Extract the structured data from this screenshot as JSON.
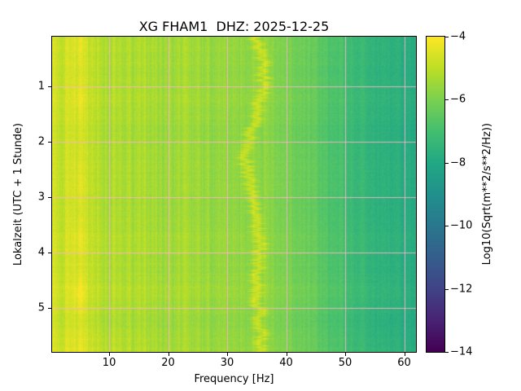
{
  "chart_data": {
    "type": "heatmap",
    "title": "XG FHAM1  DHZ: 2025-12-25",
    "xlabel": "Frequency [Hz]",
    "ylabel": "Lokalzeit (UTC + 1 Stunde)",
    "colorbar_label": "Log10(Sqrt(m**2/s**2/Hz))",
    "x_range": [
      0.33,
      62
    ],
    "y_range": [
      0.1,
      5.8
    ],
    "x_ticks": [
      10,
      20,
      30,
      40,
      50,
      60
    ],
    "y_ticks": [
      1,
      2,
      3,
      4,
      5
    ],
    "color_range": [
      -14,
      -4
    ],
    "colorbar_ticks": [
      -4,
      -6,
      -8,
      -10,
      -12,
      -14
    ],
    "colormap": "viridis",
    "viridis_stops": [
      "#440154",
      "#482475",
      "#414487",
      "#355f8d",
      "#2a788e",
      "#21918c",
      "#22a884",
      "#44bf70",
      "#7ad151",
      "#bddf26",
      "#fde725"
    ],
    "grid_color": "#ffb3c8",
    "grid_on": true,
    "legend": "colorbar-right",
    "freqs": [
      0.5,
      2,
      3.5,
      5,
      6.5,
      8,
      12,
      16,
      20,
      25,
      30,
      33,
      35,
      37,
      40,
      45,
      50,
      55,
      58,
      62
    ],
    "times": [
      0.25,
      0.75,
      1.25,
      1.75,
      2.25,
      2.75,
      3.25,
      3.75,
      4.25,
      4.75,
      5.25,
      5.75
    ],
    "values": [
      [
        -4.55,
        -4.85,
        -4.75,
        -4.25,
        -4.85,
        -5.05,
        -5.15,
        -5.25,
        -5.35,
        -5.45,
        -5.55,
        -5.55,
        -5.55,
        -5.65,
        -5.95,
        -6.45,
        -7.05,
        -7.45,
        -7.65,
        -7.85
      ],
      [
        -4.6,
        -4.9,
        -4.8,
        -4.5,
        -4.9,
        -5.1,
        -5.2,
        -5.3,
        -5.4,
        -5.5,
        -5.6,
        -5.6,
        -5.6,
        -5.7,
        -6.0,
        -6.5,
        -7.1,
        -7.5,
        -7.7,
        -7.9
      ],
      [
        -4.5,
        -4.8,
        -4.7,
        -4.15,
        -4.8,
        -5.0,
        -5.1,
        -5.2,
        -5.3,
        -5.4,
        -5.5,
        -5.5,
        -5.5,
        -5.6,
        -5.9,
        -6.4,
        -7.0,
        -7.4,
        -7.6,
        -7.8
      ],
      [
        -4.65,
        -4.95,
        -4.85,
        -4.55,
        -4.95,
        -5.15,
        -5.25,
        -5.35,
        -5.45,
        -5.55,
        -5.65,
        -5.65,
        -5.65,
        -5.75,
        -6.05,
        -6.55,
        -7.15,
        -7.55,
        -7.75,
        -7.95
      ],
      [
        -4.6,
        -4.9,
        -4.8,
        -4.5,
        -4.9,
        -5.1,
        -5.2,
        -5.3,
        -5.4,
        -5.5,
        -5.6,
        -5.6,
        -5.6,
        -5.7,
        -6.0,
        -6.5,
        -7.1,
        -7.5,
        -7.7,
        -7.9
      ],
      [
        -4.55,
        -4.85,
        -4.75,
        -4.25,
        -4.85,
        -5.05,
        -5.15,
        -5.25,
        -5.35,
        -5.45,
        -5.55,
        -5.55,
        -5.55,
        -5.65,
        -5.95,
        -6.45,
        -7.05,
        -7.45,
        -7.65,
        -7.85
      ],
      [
        -4.65,
        -4.95,
        -4.85,
        -4.55,
        -4.95,
        -5.15,
        -5.25,
        -5.35,
        -5.45,
        -5.55,
        -5.65,
        -5.65,
        -5.65,
        -5.75,
        -6.05,
        -6.55,
        -7.15,
        -7.55,
        -7.75,
        -7.95
      ],
      [
        -4.5,
        -4.8,
        -4.7,
        -4.15,
        -4.8,
        -5.0,
        -5.1,
        -5.2,
        -5.3,
        -5.4,
        -5.5,
        -5.5,
        -5.5,
        -5.6,
        -5.9,
        -6.4,
        -7.0,
        -7.4,
        -7.6,
        -7.8
      ],
      [
        -4.6,
        -4.9,
        -4.8,
        -4.5,
        -4.9,
        -5.1,
        -5.2,
        -5.3,
        -5.4,
        -5.5,
        -5.6,
        -5.6,
        -5.6,
        -5.7,
        -6.0,
        -6.5,
        -7.1,
        -7.5,
        -7.7,
        -7.9
      ],
      [
        -4.45,
        -4.75,
        -4.65,
        -3.9,
        -4.75,
        -4.95,
        -5.05,
        -5.15,
        -5.25,
        -5.35,
        -5.45,
        -5.45,
        -5.45,
        -5.55,
        -5.85,
        -6.35,
        -6.95,
        -7.35,
        -7.55,
        -7.75
      ],
      [
        -4.65,
        -4.95,
        -4.85,
        -4.55,
        -4.95,
        -5.15,
        -5.25,
        -5.35,
        -5.45,
        -5.55,
        -5.65,
        -5.65,
        -5.65,
        -5.75,
        -6.05,
        -6.55,
        -7.15,
        -7.55,
        -7.75,
        -7.95
      ],
      [
        -4.45,
        -4.7,
        -4.6,
        -4.2,
        -4.7,
        -4.9,
        -5.0,
        -5.15,
        -5.3,
        -5.4,
        -5.5,
        -5.5,
        -5.5,
        -5.6,
        -5.9,
        -6.4,
        -7.0,
        -7.4,
        -7.6,
        -7.8
      ]
    ],
    "features": {
      "ridge": {
        "amp": 0.95,
        "sigma_hz": 0.6,
        "jitter_hz": 0.7,
        "t": [
          0,
          0.5,
          1,
          1.5,
          2,
          2.5,
          3,
          3.5,
          4,
          4.5,
          5,
          5.5,
          6
        ],
        "f": [
          34.5,
          35.8,
          36.2,
          35.0,
          33.6,
          33.2,
          34.0,
          35.0,
          35.6,
          34.8,
          35.2,
          36.0,
          35.4
        ]
      },
      "texture": {
        "column_amp": 0.22,
        "pixel_amp": 0.18
      }
    }
  }
}
